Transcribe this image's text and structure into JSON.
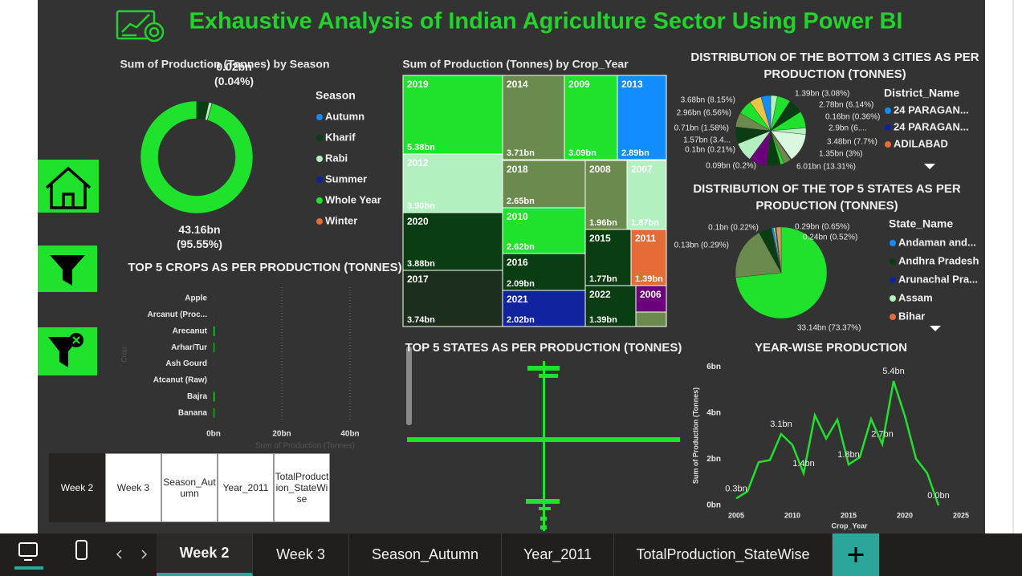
{
  "header": {
    "title": "Exhaustive Analysis of Indian Agriculture Sector Using Power BI"
  },
  "bookmarks": {
    "items": [
      "Week 2",
      "Week 3",
      "Season_Autumn",
      "Year_2011",
      "TotalProduction_StateWise"
    ],
    "active": 0
  },
  "tabs": {
    "items": [
      "Week 2",
      "Week 3",
      "Season_Autumn",
      "Year_2011",
      "TotalProduction_StateWise"
    ],
    "active": 0
  },
  "chart_data": [
    {
      "type": "donut",
      "title": "Sum of Production (Tonnes) by Season",
      "legend_title": "Season",
      "categories": [
        "Autumn",
        "Kharif",
        "Rabi",
        "Summer",
        "Whole Year",
        "Winter"
      ],
      "colors": [
        "#118dff",
        "#0a3d12",
        "#b3f0c0",
        "#12239e",
        "#1ee22b",
        "#e66c37"
      ],
      "values": [
        0.03,
        1.55,
        0.41,
        0.02,
        43.16,
        0.0
      ],
      "value_labels": [
        null,
        null,
        null,
        "0.02bn (0.04%)",
        "43.16bn (95.55%)",
        null
      ]
    },
    {
      "type": "treemap",
      "title": "Sum of Production (Tonnes) by Crop_Year",
      "categories": [
        "2019",
        "2014",
        "2009",
        "2013",
        "2012",
        "2018",
        "2008",
        "2007",
        "2020",
        "2010",
        "2015",
        "2011",
        "2017",
        "2016",
        "2021",
        "2022",
        "2006",
        null
      ],
      "values": [
        5.38,
        3.71,
        3.09,
        2.89,
        3.9,
        2.65,
        1.96,
        1.87,
        3.88,
        2.62,
        1.77,
        1.39,
        3.74,
        2.09,
        2.02,
        1.39,
        0.6,
        0.3
      ],
      "value_labels": [
        "5.38bn",
        "3.71bn",
        "3.09bn",
        "2.89bn",
        "3.90bn",
        "2.65bn",
        "1.96bn",
        "1.87bn",
        "3.88bn",
        "2.62bn",
        "1.77bn",
        "1.39bn",
        "3.74bn",
        "2.09bn",
        "2.02bn",
        "1.39bn",
        null,
        null
      ],
      "colors": [
        "#1ee22b",
        "#6b8a4e",
        "#1ee22b",
        "#118dff",
        "#b3f0c0",
        "#6b8a4e",
        "#6b8a4e",
        "#b3f0c0",
        "#0a3d12",
        "#1ee22b",
        "#0a3d12",
        "#e66c37",
        "#1c2e1c",
        "#0a3d12",
        "#12239e",
        "#0a3d12",
        "#6b007b",
        "#6b8a4e"
      ]
    },
    {
      "type": "pie",
      "title": "DISTRIBUTION OF THE BOTTOM 3 CITIES AS PER PRODUCTION (TONNES)",
      "legend": {
        "title": "District_Name",
        "items": [
          {
            "name": "24 PARAGAN...",
            "color": "#118dff"
          },
          {
            "name": "24 PARAGAN...",
            "color": "#12239e"
          },
          {
            "name": "ADILABAD",
            "color": "#e66c37"
          }
        ]
      },
      "values": [
        1.39,
        2.78,
        0.16,
        2.9,
        3.48,
        1.35,
        6.01,
        0.09,
        0.1,
        1.57,
        0.71,
        2.96,
        3.68,
        4.0,
        3.5,
        3.0,
        3.0,
        2.5,
        2.0
      ],
      "value_labels": [
        "1.39bn (3.08%)",
        "2.78bn (6.14%)",
        "0.16bn (0.36%)",
        "2.9bn (6....",
        "3.48bn (7.7%)",
        "1.35bn (3%)",
        "6.01bn (13.31%)",
        "0.09bn (0.2%)",
        "0.1bn (0.21%)",
        "1.57bn (3.4...",
        "0.71bn (1.58%)",
        "2.96bn (6.56%)",
        "3.68bn (8.15%)",
        null,
        null,
        null,
        null,
        null,
        null
      ],
      "colors": [
        "#b3f0c0",
        "#1ee22b",
        "#6b007b",
        "#0a3d12",
        "#1ee22b",
        "#b3f0c0",
        "#d9f7de",
        "#e66c37",
        "#12239e",
        "#6b8a4e",
        "#1ee22b",
        "#0a3d12",
        "#6b007b",
        "#b3f0c0",
        "#0a3d12",
        "#6b8a4e",
        "#1ee22b",
        "#e8c547",
        "#118dff"
      ]
    },
    {
      "type": "pie",
      "title": "DISTRIBUTION OF THE TOP 5 STATES AS PER PRODUCTION (TONNES)",
      "legend": {
        "title": "State_Name",
        "items": [
          {
            "name": "Andaman and...",
            "color": "#118dff"
          },
          {
            "name": "Andhra Pradesh",
            "color": "#0a3d12"
          },
          {
            "name": "Arunachal Pra...",
            "color": "#12239e"
          },
          {
            "name": "Assam",
            "color": "#b3f0c0"
          },
          {
            "name": "Bihar",
            "color": "#e66c37"
          }
        ]
      },
      "values": [
        33.14,
        8.4,
        2.1,
        0.29,
        0.24,
        0.13,
        0.1,
        0.77
      ],
      "value_labels": [
        "33.14bn (73.37%)",
        null,
        null,
        "0.29bn (0.65%)",
        "0.24bn (0.52%)",
        "0.13bn (0.29%)",
        "0.1bn (0.22%)",
        null
      ],
      "colors": [
        "#1ee22b",
        "#6b8a4e",
        "#0a3d12",
        "#118dff",
        "#b3f0c0",
        "#a66999",
        "#e66c37",
        "#c8a060"
      ]
    },
    {
      "type": "bar",
      "orientation": "horizontal",
      "title": "TOP 5 CROPS AS PER PRODUCTION (TONNES)",
      "x_label": "Sum of Production (Tonnes)",
      "y_label": "Crop",
      "color": "#1ee22b",
      "categories": [
        "Apple",
        "Arcanut (Proc...",
        "Arecanut",
        "Arhar/Tur",
        "Ash Gourd",
        "Atcanut (Raw)",
        "Bajra",
        "Banana"
      ],
      "values": [
        0.01,
        0.01,
        0.3,
        0.2,
        0.01,
        0.01,
        0.3,
        0.2
      ],
      "xlim": [
        0,
        55
      ],
      "xticks": [
        {
          "value": 0,
          "label": "0bn"
        },
        {
          "value": 20,
          "label": "20bn"
        },
        {
          "value": 40,
          "label": "40bn"
        }
      ],
      "grid": true
    },
    {
      "type": "blank",
      "title": "TOP 5 STATES AS PER PRODUCTION (TONNES)"
    },
    {
      "type": "line",
      "title": "YEAR-WISE PRODUCTION",
      "x_label": "Crop_Year",
      "y_label": "Sum of Production (Tonnes)",
      "color": "#1ee22b",
      "x": [
        2005,
        2006,
        2007,
        2008,
        2009,
        2010,
        2011,
        2012,
        2013,
        2014,
        2015,
        2016,
        2017,
        2018,
        2019,
        2020,
        2021,
        2022,
        2023
      ],
      "values": [
        0.3,
        0.6,
        1.87,
        1.96,
        3.09,
        2.62,
        1.39,
        3.9,
        2.89,
        3.71,
        1.77,
        2.09,
        3.74,
        2.65,
        5.38,
        3.88,
        2.02,
        1.39,
        0.0
      ],
      "value_labels": [
        "0.3bn",
        null,
        null,
        null,
        "3.1bn",
        null,
        "1.4bn",
        null,
        null,
        null,
        "1.8bn",
        null,
        null,
        "2.7bn",
        "5.4bn",
        null,
        null,
        null,
        "0.0bn"
      ],
      "xlim": [
        2004.5,
        2026
      ],
      "xticks": [
        2005,
        2010,
        2015,
        2020,
        2025
      ],
      "ylim": [
        0,
        6.2
      ],
      "yticks": [
        {
          "value": 0,
          "label": "0bn"
        },
        {
          "value": 2,
          "label": "2bn"
        },
        {
          "value": 4,
          "label": "4bn"
        },
        {
          "value": 6,
          "label": "6bn"
        }
      ]
    }
  ]
}
